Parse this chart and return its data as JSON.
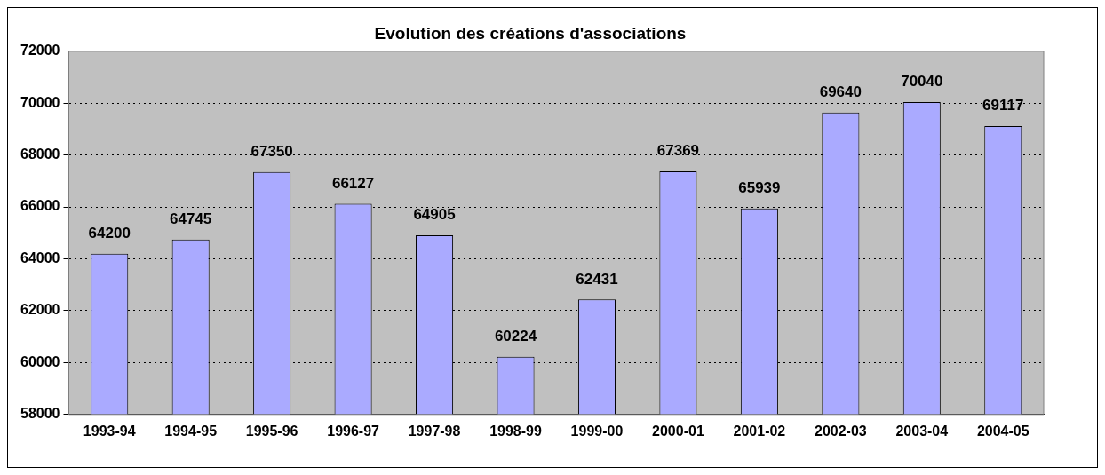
{
  "chart_data": {
    "type": "bar",
    "title": "Evolution des créations d'associations",
    "categories": [
      "1993-94",
      "1994-95",
      "1995-96",
      "1996-97",
      "1997-98",
      "1998-99",
      "1999-00",
      "2000-01",
      "2001-02",
      "2002-03",
      "2003-04",
      "2004-05"
    ],
    "values": [
      64200,
      64745,
      67350,
      66127,
      64905,
      60224,
      62431,
      67369,
      65939,
      69640,
      70040,
      69117
    ],
    "color": "#aaaaff",
    "ylim": [
      58000,
      72000
    ],
    "yticks": [
      58000,
      60000,
      62000,
      64000,
      66000,
      68000,
      70000,
      72000
    ],
    "grid": "y",
    "legend": false,
    "data_labels": true
  }
}
